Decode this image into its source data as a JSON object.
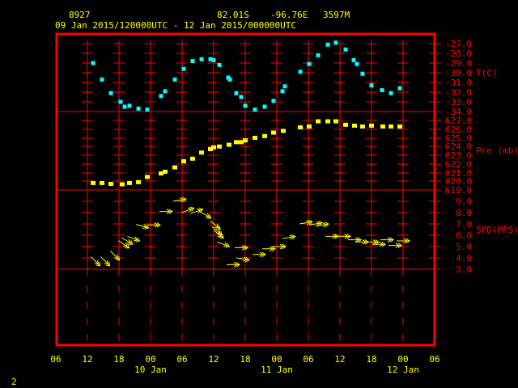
{
  "header": {
    "station": "8927",
    "latitude": "82.01S",
    "longitude": "-96.76E",
    "elevation": "3597M",
    "time_range": "09 Jan 2015/120000UTC - 12 Jan 2015/000000UTC"
  },
  "footer": {
    "page_number": "2"
  },
  "colors": {
    "frame": "#ff0000",
    "temperature": "#00ffff",
    "pressure": "#ffff00",
    "wind": "#ffff00",
    "text": "#ffff00",
    "axis_text": "#ff0000"
  },
  "x_axis": {
    "range": [
      "09 Jan 06:00",
      "12 Jan 06:00"
    ],
    "tick_labels": [
      "06",
      "12",
      "18",
      "00",
      "06",
      "12",
      "18",
      "00",
      "06",
      "12",
      "18",
      "00",
      "06"
    ],
    "date_labels": [
      {
        "date": "10 Jan",
        "at": "10 Jan 00:00"
      },
      {
        "date": "11 Jan",
        "at": "11 Jan 00:00"
      },
      {
        "date": "12 Jan",
        "at": "12 Jan 00:00"
      }
    ]
  },
  "chart_data": [
    {
      "type": "scatter",
      "ylabel": "T(C)",
      "ylim": [
        -34,
        -27
      ],
      "tick_labels": [
        "-27.0",
        "-28.0",
        "-29.0",
        "-30.0",
        "-31.0",
        "-32.0",
        "-33.0",
        "-34.0"
      ],
      "x": [
        "09 Jan 13:05",
        "09 Jan 14:46",
        "09 Jan 16:28",
        "09 Jan 18:18",
        "09 Jan 19:05",
        "09 Jan 20:00",
        "09 Jan 21:42",
        "09 Jan 23:23",
        "10 Jan 02:00",
        "10 Jan 02:46",
        "10 Jan 04:37",
        "10 Jan 06:18",
        "10 Jan 08:00",
        "10 Jan 09:42",
        "10 Jan 11:23",
        "10 Jan 12:00",
        "10 Jan 13:05",
        "10 Jan 14:46",
        "10 Jan 15:05",
        "10 Jan 16:18",
        "10 Jan 17:14",
        "10 Jan 18:00",
        "10 Jan 19:51",
        "10 Jan 21:42",
        "10 Jan 23:23",
        "11 Jan 01:05",
        "11 Jan 01:32",
        "11 Jan 04:28",
        "11 Jan 06:09",
        "11 Jan 07:51",
        "11 Jan 09:42",
        "11 Jan 11:14",
        "11 Jan 13:05",
        "11 Jan 14:37",
        "11 Jan 15:14",
        "11 Jan 16:18",
        "11 Jan 18:00",
        "11 Jan 20:00",
        "11 Jan 21:42",
        "11 Jan 23:23"
      ],
      "values": [
        -29.0,
        -30.7,
        -32.1,
        -33.0,
        -33.5,
        -33.4,
        -33.7,
        -33.8,
        -32.4,
        -31.9,
        -30.7,
        -29.6,
        -28.8,
        -28.6,
        -28.6,
        -28.7,
        -29.2,
        -30.5,
        -30.7,
        -32.1,
        -32.5,
        -33.4,
        -33.8,
        -33.5,
        -32.9,
        -31.9,
        -31.4,
        -29.9,
        -29.1,
        -28.2,
        -27.1,
        -26.9,
        -27.6,
        -28.7,
        -29.1,
        -30.1,
        -31.3,
        -31.8,
        -32.1,
        -31.6
      ]
    },
    {
      "type": "scatter",
      "ylabel": "Pre (mb)",
      "ylim": [
        619,
        627
      ],
      "tick_labels": [
        "627.0",
        "626.0",
        "625.0",
        "624.0",
        "623.0",
        "622.0",
        "621.0",
        "620.0",
        "619.0"
      ],
      "x": [
        "09 Jan 13:05",
        "09 Jan 14:46",
        "09 Jan 16:28",
        "09 Jan 18:37",
        "09 Jan 20:00",
        "09 Jan 21:42",
        "09 Jan 23:23",
        "10 Jan 02:00",
        "10 Jan 02:46",
        "10 Jan 04:37",
        "10 Jan 06:18",
        "10 Jan 08:00",
        "10 Jan 09:42",
        "10 Jan 11:23",
        "10 Jan 12:00",
        "10 Jan 13:05",
        "10 Jan 14:55",
        "10 Jan 16:18",
        "10 Jan 17:14",
        "10 Jan 18:00",
        "10 Jan 19:51",
        "10 Jan 21:42",
        "10 Jan 23:23",
        "11 Jan 01:14",
        "11 Jan 04:28",
        "11 Jan 06:09",
        "11 Jan 07:51",
        "11 Jan 09:42",
        "11 Jan 11:14",
        "11 Jan 13:05",
        "11 Jan 14:46",
        "11 Jan 16:18",
        "11 Jan 18:00",
        "11 Jan 20:09",
        "11 Jan 21:42",
        "11 Jan 23:23"
      ],
      "values": [
        619.8,
        619.8,
        619.7,
        619.65,
        619.8,
        619.9,
        620.5,
        620.9,
        621.1,
        621.6,
        622.3,
        622.6,
        623.3,
        623.7,
        623.9,
        624.0,
        624.2,
        624.5,
        624.5,
        624.7,
        625.0,
        625.2,
        625.6,
        625.8,
        626.2,
        626.3,
        626.9,
        626.9,
        626.9,
        626.5,
        626.4,
        626.3,
        626.4,
        626.3,
        626.3,
        626.3
      ]
    },
    {
      "type": "vector",
      "ylabel": "SPD(MPS)",
      "ylim": [
        3,
        9
      ],
      "tick_labels": [
        "9.0",
        "8.0",
        "7.0",
        "6.0",
        "5.0",
        "4.0",
        "3.0"
      ],
      "x": [
        "09 Jan 13:32",
        "09 Jan 15:23",
        "09 Jan 17:14",
        "09 Jan 18:55",
        "09 Jan 19:32",
        "09 Jan 20:46",
        "09 Jan 22:28",
        "10 Jan 00:37",
        "10 Jan 02:55",
        "10 Jan 05:32",
        "10 Jan 07:05",
        "10 Jan 08:46",
        "10 Jan 10:28",
        "10 Jan 12:18",
        "10 Jan 12:37",
        "10 Jan 12:55",
        "10 Jan 13:51",
        "10 Jan 15:42",
        "10 Jan 17:32",
        "10 Jan 17:14",
        "10 Jan 20:37",
        "10 Jan 22:28",
        "11 Jan 00:28",
        "11 Jan 02:18",
        "11 Jan 05:32",
        "11 Jan 07:23",
        "11 Jan 08:37",
        "11 Jan 10:28",
        "11 Jan 12:46",
        "11 Jan 14:46",
        "11 Jan 16:09",
        "11 Jan 18:09",
        "11 Jan 19:23",
        "11 Jan 20:55",
        "11 Jan 22:28",
        "12 Jan 00:00"
      ],
      "values": [
        3.7,
        3.7,
        4.2,
        5.2,
        5.5,
        5.7,
        6.8,
        6.9,
        8.1,
        9.1,
        8.2,
        8.1,
        7.8,
        6.9,
        6.4,
        6.1,
        5.2,
        3.4,
        3.9,
        4.9,
        4.3,
        4.8,
        5.0,
        5.8,
        7.1,
        7.0,
        6.9,
        5.9,
        5.9,
        5.6,
        5.4,
        5.4,
        5.2,
        5.6,
        5.1,
        5.5
      ],
      "arrow_angle_deg": [
        45,
        45,
        45,
        35,
        30,
        20,
        15,
        0,
        0,
        -10,
        -20,
        -20,
        30,
        40,
        40,
        40,
        20,
        0,
        10,
        0,
        0,
        0,
        0,
        -10,
        -10,
        -10,
        -10,
        0,
        0,
        0,
        0,
        0,
        0,
        0,
        0,
        0
      ]
    }
  ]
}
